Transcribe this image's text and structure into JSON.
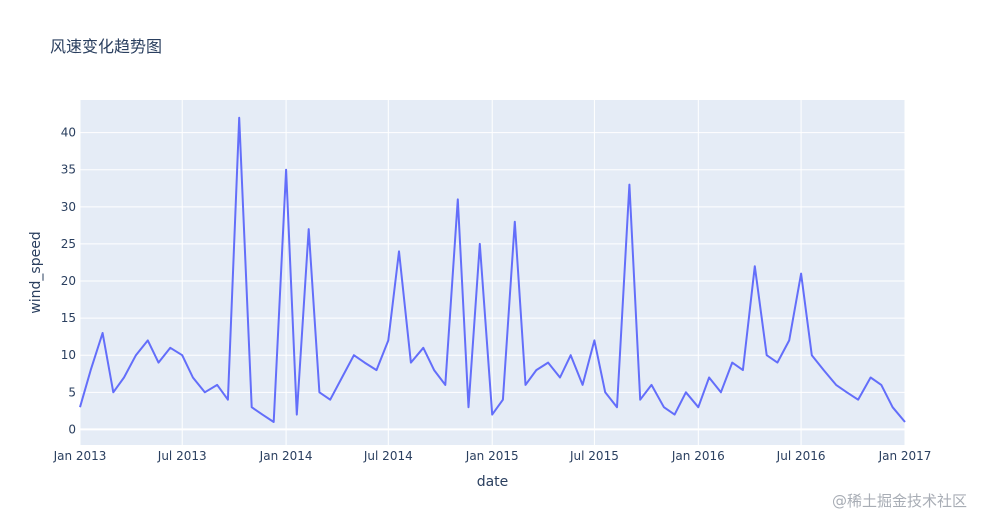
{
  "title": "风速变化趋势图",
  "watermark": "@稀土掘金技术社区",
  "colors": {
    "plot_bg": "#e5ecf6",
    "grid": "#ffffff",
    "line": "#636efa",
    "text": "#2a3f5f"
  },
  "chart_data": {
    "type": "line",
    "title": "风速变化趋势图",
    "xlabel": "date",
    "ylabel": "wind_speed",
    "xlim": [
      "2013-01-01",
      "2017-01-01"
    ],
    "ylim": [
      -2.1,
      44.4
    ],
    "x_ticks": [
      {
        "date": "2013-01-01",
        "label": "Jan 2013"
      },
      {
        "date": "2013-07-01",
        "label": "Jul 2013"
      },
      {
        "date": "2014-01-01",
        "label": "Jan 2014"
      },
      {
        "date": "2014-07-01",
        "label": "Jul 2014"
      },
      {
        "date": "2015-01-01",
        "label": "Jan 2015"
      },
      {
        "date": "2015-07-01",
        "label": "Jul 2015"
      },
      {
        "date": "2016-01-01",
        "label": "Jan 2016"
      },
      {
        "date": "2016-07-01",
        "label": "Jul 2016"
      },
      {
        "date": "2017-01-01",
        "label": "Jan 2017"
      }
    ],
    "y_ticks": [
      0,
      5,
      10,
      15,
      20,
      25,
      30,
      35,
      40
    ],
    "grid": true,
    "series": [
      {
        "x": [
          "2013-01-01",
          "2013-01-20",
          "2013-02-10",
          "2013-03-01",
          "2013-03-20",
          "2013-04-10",
          "2013-05-01",
          "2013-05-20",
          "2013-06-10",
          "2013-07-01",
          "2013-07-20",
          "2013-08-10",
          "2013-09-01",
          "2013-09-20",
          "2013-10-10",
          "2013-11-01",
          "2013-11-20",
          "2013-12-10",
          "2014-01-01",
          "2014-01-20",
          "2014-02-10",
          "2014-03-01",
          "2014-03-20",
          "2014-04-10",
          "2014-05-01",
          "2014-05-20",
          "2014-06-10",
          "2014-07-01",
          "2014-07-20",
          "2014-08-10",
          "2014-09-01",
          "2014-09-20",
          "2014-10-10",
          "2014-11-01",
          "2014-11-20",
          "2014-12-10",
          "2015-01-01",
          "2015-01-20",
          "2015-02-10",
          "2015-03-01",
          "2015-03-20",
          "2015-04-10",
          "2015-05-01",
          "2015-05-20",
          "2015-06-10",
          "2015-07-01",
          "2015-07-20",
          "2015-08-10",
          "2015-09-01",
          "2015-09-20",
          "2015-10-10",
          "2015-11-01",
          "2015-11-20",
          "2015-12-10",
          "2016-01-01",
          "2016-01-20",
          "2016-02-10",
          "2016-03-01",
          "2016-03-20",
          "2016-04-10",
          "2016-05-01",
          "2016-05-20",
          "2016-06-10",
          "2016-07-01",
          "2016-07-20",
          "2016-08-10",
          "2016-09-01",
          "2016-09-20",
          "2016-10-10",
          "2016-11-01",
          "2016-11-20",
          "2016-12-10",
          "2017-01-01"
        ],
        "y": [
          3,
          8,
          13,
          5,
          7,
          10,
          12,
          9,
          11,
          10,
          7,
          5,
          6,
          4,
          42,
          3,
          2,
          1,
          35,
          2,
          27,
          5,
          4,
          7,
          10,
          9,
          8,
          12,
          24,
          9,
          11,
          8,
          6,
          31,
          3,
          25,
          2,
          4,
          28,
          6,
          8,
          9,
          7,
          10,
          6,
          12,
          5,
          3,
          33,
          4,
          6,
          3,
          2,
          5,
          3,
          7,
          5,
          9,
          8,
          22,
          10,
          9,
          12,
          21,
          10,
          8,
          6,
          5,
          4,
          7,
          6,
          3,
          1
        ]
      }
    ]
  }
}
